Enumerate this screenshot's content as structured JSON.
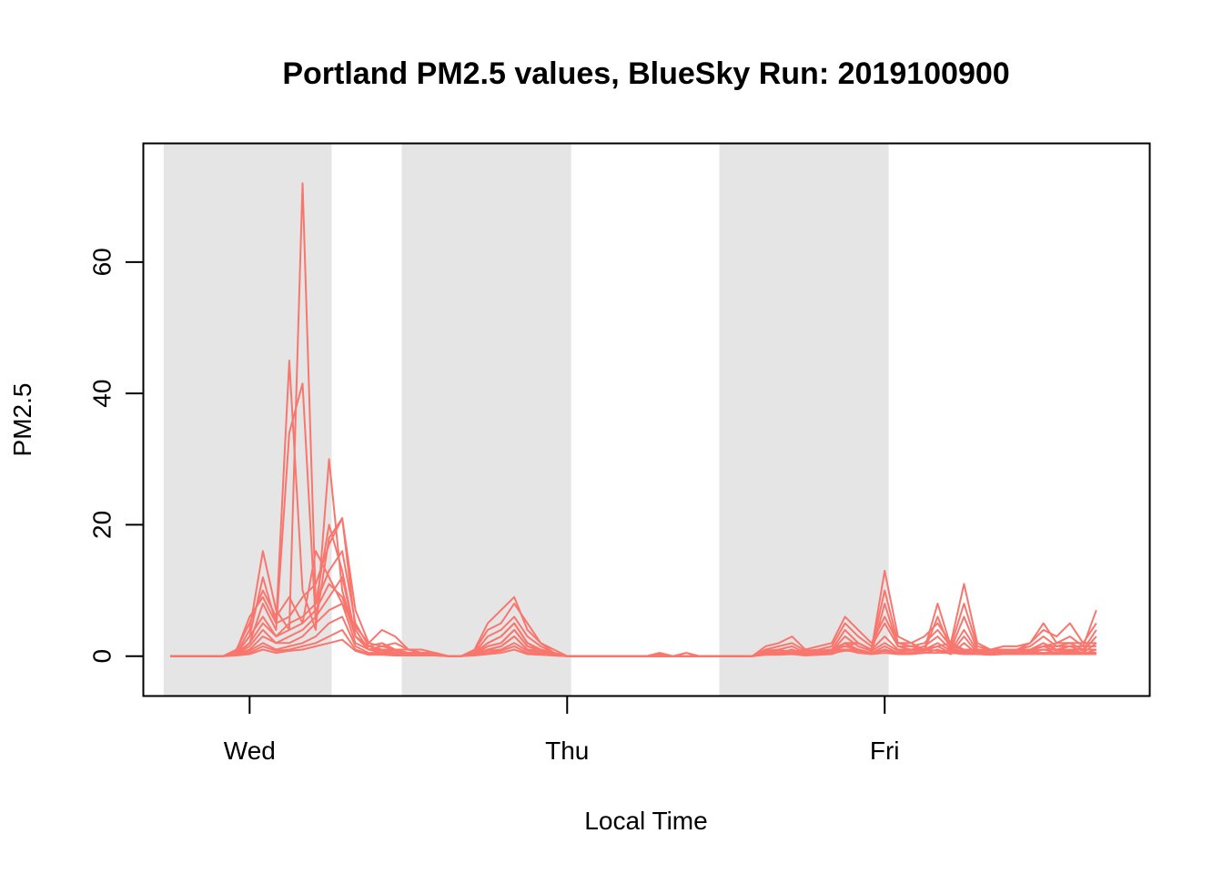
{
  "chart_data": {
    "type": "line",
    "title": "Portland PM2.5 values, BlueSky Run: 2019100900",
    "xlabel": "Local Time",
    "ylabel": "PM2.5",
    "x_unit": "hours",
    "xlim": [
      -2,
      74
    ],
    "ylim": [
      -6,
      78
    ],
    "y_ticks": [
      0,
      20,
      40,
      60
    ],
    "x_ticks": [
      {
        "label": "Wed",
        "value": 6
      },
      {
        "label": "Thu",
        "value": 30
      },
      {
        "label": "Fri",
        "value": 54
      }
    ],
    "night_bands": [
      [
        -0.5,
        12.2
      ],
      [
        17.5,
        30.3
      ],
      [
        41.5,
        54.3
      ]
    ],
    "line_color": "#F8766D",
    "band_color": "#E5E5E5",
    "grid": false,
    "legend": "none",
    "x": [
      0,
      1,
      2,
      3,
      4,
      5,
      6,
      7,
      8,
      9,
      10,
      11,
      12,
      13,
      14,
      15,
      16,
      17,
      18,
      19,
      20,
      21,
      22,
      23,
      24,
      25,
      26,
      27,
      28,
      29,
      30,
      31,
      32,
      33,
      34,
      35,
      36,
      37,
      38,
      39,
      40,
      41,
      42,
      43,
      44,
      45,
      46,
      47,
      48,
      49,
      50,
      51,
      52,
      53,
      54,
      55,
      56,
      57,
      58,
      59,
      60,
      61,
      62,
      63,
      64,
      65,
      66,
      67,
      68,
      69,
      70
    ],
    "series": [
      {
        "values": [
          0,
          0,
          0,
          0,
          0,
          0.5,
          4,
          16,
          7,
          4,
          72,
          8,
          20,
          13,
          3,
          1.5,
          2,
          1,
          1,
          0.5,
          0.5,
          0,
          0,
          0.5,
          2,
          3,
          5,
          2,
          1,
          0.5,
          0,
          0,
          0,
          0,
          0,
          0,
          0,
          0,
          0,
          0.5,
          0,
          0,
          0,
          0,
          0,
          1,
          0.5,
          0.5,
          0.5,
          0.5,
          1,
          1.5,
          1,
          0.5,
          1,
          0.5,
          1,
          1,
          0.8,
          0.8,
          0.6,
          0.5,
          0.5,
          0.5,
          0.5,
          0.5,
          0.5,
          0.5,
          0.5,
          0.5,
          0.5
        ]
      },
      {
        "values": [
          0,
          0,
          0,
          0,
          0,
          0.5,
          3,
          12,
          5,
          45,
          10,
          4,
          30,
          10,
          3,
          1,
          1.5,
          1,
          0.5,
          0.5,
          0.5,
          0,
          0,
          0.5,
          1.5,
          2,
          4,
          1.5,
          1,
          0.5,
          0,
          0,
          0,
          0,
          0,
          0,
          0,
          0.5,
          0,
          0,
          0,
          0,
          0,
          0,
          0,
          0.5,
          0.5,
          0.5,
          0.5,
          0.5,
          0.8,
          1,
          1,
          0.5,
          0.8,
          0.5,
          1,
          1,
          0.8,
          0.6,
          0.5,
          0.5,
          0.5,
          0.5,
          0.5,
          0.5,
          0.5,
          0.5,
          0.5,
          0.5,
          0.5
        ]
      },
      {
        "values": [
          0,
          0,
          0,
          0,
          0,
          0.3,
          2,
          8,
          4,
          34,
          41.5,
          5,
          18,
          21,
          4,
          1,
          1,
          0.8,
          0.5,
          0.5,
          0.5,
          0,
          0,
          0.3,
          1,
          1.5,
          3,
          1,
          0.8,
          0.3,
          0,
          0,
          0,
          0,
          0,
          0,
          0,
          0,
          0,
          0,
          0,
          0,
          0,
          0,
          0,
          0.3,
          0.3,
          0.3,
          0.3,
          0.3,
          0.5,
          0.8,
          0.8,
          0.3,
          0.5,
          0.3,
          0.5,
          0.5,
          0.5,
          0.5,
          0.3,
          0.3,
          0.3,
          0.3,
          0.3,
          0.3,
          0.3,
          0.3,
          0.3,
          0.3,
          0.3
        ]
      },
      {
        "values": [
          0,
          0,
          0,
          0,
          0,
          1,
          5,
          10,
          6,
          9,
          5,
          16,
          12,
          8,
          4.5,
          2,
          4,
          3,
          1,
          1,
          0.5,
          0,
          0,
          1,
          5,
          7,
          9,
          4,
          2,
          1,
          0,
          0,
          0,
          0,
          0,
          0,
          0,
          0.3,
          0,
          0,
          0,
          0,
          0,
          0,
          0,
          0.5,
          1,
          0.5,
          1,
          0.5,
          1,
          1.5,
          2,
          1,
          13,
          3,
          2,
          1,
          1.5,
          2,
          1,
          1,
          1,
          1,
          1,
          1,
          1.5,
          1.5,
          1.5,
          1.5,
          1.5
        ]
      },
      {
        "values": [
          0,
          0,
          0,
          0,
          0,
          0.8,
          6,
          9,
          5,
          6,
          9,
          11,
          17,
          21,
          7,
          2,
          1.5,
          2,
          1,
          0.5,
          0.5,
          0,
          0,
          0.8,
          4,
          5,
          8,
          5,
          2,
          0.5,
          0,
          0,
          0,
          0,
          0,
          0,
          0,
          0,
          0,
          0,
          0,
          0,
          0,
          0,
          0,
          0.8,
          0.8,
          0.8,
          0.8,
          0.8,
          1,
          2,
          2,
          1,
          10,
          2,
          1.5,
          1,
          8,
          1.5,
          1,
          1,
          1,
          1,
          1,
          1,
          1.5,
          2,
          2,
          2,
          2
        ]
      },
      {
        "values": [
          0,
          0,
          0,
          0,
          0,
          0.5,
          3,
          6,
          3,
          5,
          6,
          8,
          13,
          16,
          5,
          1.5,
          1,
          1,
          1,
          0.5,
          0.5,
          0,
          0,
          0.5,
          3,
          4,
          6,
          3,
          1.5,
          0.5,
          0,
          0,
          0,
          0,
          0,
          0,
          0,
          0,
          0,
          0,
          0,
          0,
          0,
          0,
          0,
          0.5,
          0.5,
          0.5,
          0.5,
          0.5,
          1,
          1,
          1,
          0.5,
          8,
          1.5,
          1,
          0.8,
          6,
          1,
          0.8,
          0.8,
          0.8,
          0.8,
          0.8,
          0.8,
          1,
          1,
          1,
          1,
          1
        ]
      },
      {
        "values": [
          0,
          0,
          0,
          0,
          0,
          0.5,
          2,
          5,
          3,
          4,
          5,
          7,
          11,
          9,
          3,
          1,
          1,
          0.5,
          0.5,
          0.5,
          0.3,
          0,
          0,
          0.5,
          2,
          3,
          5,
          2,
          1,
          0.3,
          0,
          0,
          0,
          0,
          0,
          0,
          0,
          0,
          0,
          0,
          0,
          0,
          0,
          0,
          0,
          1.5,
          2,
          3,
          1,
          1.5,
          2,
          6,
          4,
          2,
          6,
          2,
          2,
          3,
          5,
          2,
          11,
          2,
          1,
          1,
          1,
          2,
          4,
          3,
          5,
          2,
          5
        ]
      },
      {
        "values": [
          0,
          0,
          0,
          0,
          0,
          0.3,
          1.5,
          4,
          2,
          3,
          4,
          6,
          9,
          12,
          3,
          1,
          0.8,
          0.5,
          0.5,
          0.3,
          0.3,
          0,
          0,
          0.3,
          1.5,
          2,
          4,
          1.5,
          0.8,
          0.3,
          0,
          0,
          0,
          0,
          0,
          0,
          0,
          0,
          0,
          0,
          0,
          0,
          0,
          0,
          0,
          1,
          1.5,
          2,
          0.8,
          1,
          1.5,
          5,
          3,
          1.5,
          5,
          1.5,
          1.5,
          2,
          4,
          1.5,
          8,
          1.5,
          1,
          1.5,
          1.5,
          2,
          5,
          2,
          3,
          1.5,
          7
        ]
      },
      {
        "values": [
          0,
          0,
          0,
          0,
          0,
          0.3,
          1,
          3,
          2,
          2,
          3,
          5,
          7,
          8,
          2,
          1,
          0.5,
          0.5,
          0.3,
          0.3,
          0.3,
          0,
          0,
          0.3,
          1,
          1.5,
          3,
          1,
          0.5,
          0.3,
          0,
          0,
          0,
          0,
          0,
          0,
          0,
          0,
          0,
          0,
          0,
          0,
          0,
          0,
          0,
          0.8,
          1,
          1.5,
          0.5,
          0.8,
          1,
          4,
          2,
          1,
          3,
          1,
          1,
          1.5,
          3,
          1,
          6,
          1,
          0.8,
          1,
          1,
          1.5,
          3,
          1.5,
          2,
          1,
          4
        ]
      },
      {
        "values": [
          0,
          0,
          0,
          0,
          0,
          0.2,
          0.8,
          2,
          1,
          1.5,
          2,
          3,
          5,
          6,
          1.5,
          0.5,
          0.5,
          0.3,
          0.3,
          0.2,
          0.2,
          0,
          0,
          0.2,
          0.8,
          1,
          2,
          0.8,
          0.5,
          0.2,
          0,
          0,
          0,
          0,
          0,
          0,
          0,
          0,
          0,
          0,
          0,
          0,
          0,
          0,
          0,
          0.5,
          0.5,
          1,
          0.3,
          0.5,
          0.8,
          3,
          1.5,
          0.8,
          2,
          0.8,
          0.8,
          1,
          2,
          0.8,
          4,
          0.8,
          0.5,
          0.8,
          0.8,
          1,
          2,
          1,
          1.5,
          0.8,
          3
        ]
      },
      {
        "values": [
          0,
          0,
          0,
          0,
          0,
          0.2,
          0.5,
          1.5,
          0.8,
          1,
          1.5,
          2,
          3,
          4,
          1,
          0.3,
          0.3,
          0.2,
          0.2,
          0.2,
          0.1,
          0,
          0,
          0.2,
          0.5,
          0.8,
          1.5,
          0.5,
          0.3,
          0.1,
          0,
          0,
          0,
          0,
          0,
          0,
          0,
          0,
          0,
          0,
          0,
          0,
          0,
          0,
          0,
          0.3,
          0.3,
          0.5,
          0.2,
          0.3,
          0.5,
          2,
          1,
          0.5,
          1.5,
          0.5,
          0.5,
          0.8,
          1.5,
          0.5,
          3,
          0.5,
          0.3,
          0.5,
          0.5,
          0.8,
          1.5,
          0.8,
          1,
          0.5,
          2
        ]
      },
      {
        "values": [
          0,
          0,
          0,
          0,
          0,
          0.1,
          0.3,
          1,
          0.5,
          0.8,
          1,
          1.5,
          2,
          2.5,
          0.8,
          0.2,
          0.2,
          0.1,
          0.1,
          0.1,
          0.1,
          0,
          0,
          0.1,
          0.3,
          0.5,
          1,
          0.3,
          0.2,
          0.1,
          0,
          0,
          0,
          0,
          0,
          0,
          0,
          0,
          0,
          0,
          0,
          0,
          0,
          0,
          0,
          0.2,
          0.2,
          0.3,
          0.1,
          0.2,
          0.3,
          1,
          0.5,
          0.3,
          1,
          0.3,
          0.3,
          0.5,
          1,
          0.3,
          2,
          0.3,
          0.2,
          0.3,
          0.3,
          0.5,
          1,
          0.5,
          0.8,
          0.3,
          1
        ]
      }
    ]
  }
}
